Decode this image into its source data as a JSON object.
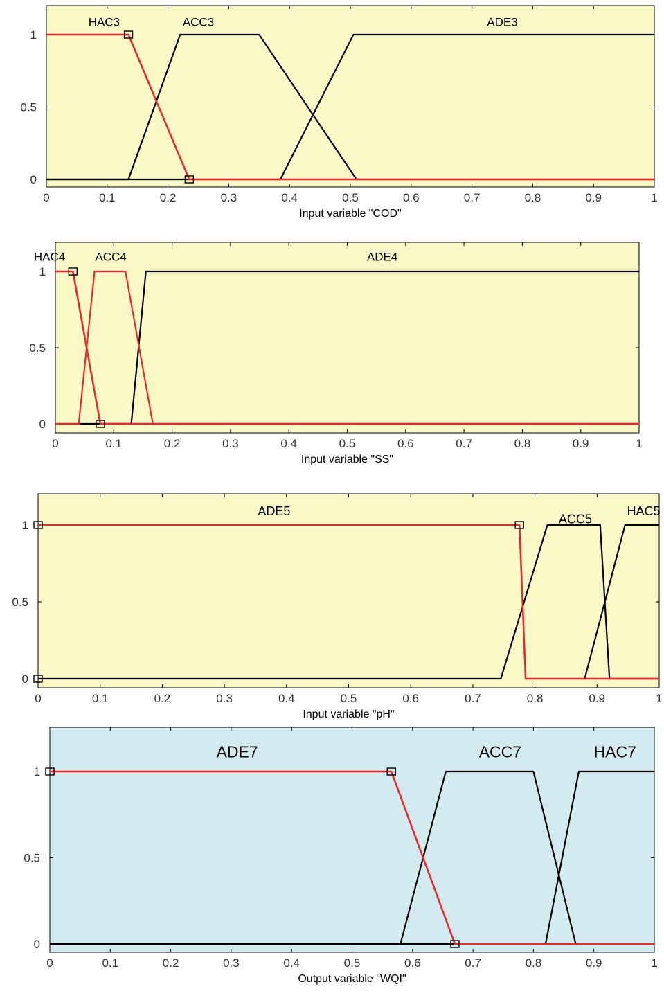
{
  "colors": {
    "input_background": "#fbf8c8",
    "output_background": "#d4eaf1",
    "selected_series": "#e8292b",
    "series": "#000000"
  },
  "chart_data": [
    {
      "type": "line",
      "xlabel": "Input variable \"COD\"",
      "xlim": [
        0,
        1
      ],
      "ylim": [
        0,
        1
      ],
      "x_ticks": [
        "0",
        "0.1",
        "0.2",
        "0.3",
        "0.4",
        "0.5",
        "0.6",
        "0.7",
        "0.8",
        "0.9",
        "1"
      ],
      "y_ticks": [
        "0",
        "0.5",
        "1"
      ],
      "grid": false,
      "background": "yellow",
      "series": [
        {
          "name": "HAC3",
          "color": "red",
          "selected": true,
          "points": [
            [
              0,
              1
            ],
            [
              0.135,
              1
            ],
            [
              0.235,
              0
            ],
            [
              1,
              0
            ]
          ],
          "markers": [
            [
              0.135,
              1
            ],
            [
              0.235,
              0
            ]
          ]
        },
        {
          "name": "ACC3",
          "color": "black",
          "points": [
            [
              0,
              0
            ],
            [
              0.135,
              0
            ],
            [
              0.22,
              1
            ],
            [
              0.35,
              1
            ],
            [
              0.51,
              0
            ],
            [
              1,
              0
            ]
          ]
        },
        {
          "name": "ADE3",
          "color": "black",
          "points": [
            [
              0,
              0
            ],
            [
              0.385,
              0
            ],
            [
              0.505,
              1
            ],
            [
              1,
              1
            ]
          ]
        }
      ]
    },
    {
      "type": "line",
      "xlabel": "Input variable \"SS\"",
      "xlim": [
        0,
        1
      ],
      "ylim": [
        0,
        1
      ],
      "x_ticks": [
        "0",
        "0.1",
        "0.2",
        "0.3",
        "0.4",
        "0.5",
        "0.6",
        "0.7",
        "0.8",
        "0.9",
        "1"
      ],
      "y_ticks": [
        "0",
        "0.5",
        "1"
      ],
      "grid": false,
      "background": "yellow",
      "series": [
        {
          "name": "HAC4",
          "color": "red",
          "selected": true,
          "points": [
            [
              0,
              1
            ],
            [
              0.03,
              1
            ],
            [
              0.077,
              0
            ],
            [
              1,
              0
            ]
          ],
          "markers": [
            [
              0.03,
              1
            ],
            [
              0.077,
              0
            ]
          ]
        },
        {
          "name": "ACC4",
          "color": "red",
          "points": [
            [
              0,
              0
            ],
            [
              0.04,
              0
            ],
            [
              0.067,
              1
            ],
            [
              0.12,
              1
            ],
            [
              0.167,
              0
            ],
            [
              1,
              0
            ]
          ]
        },
        {
          "name": "ADE4",
          "color": "black",
          "points": [
            [
              0,
              0
            ],
            [
              0.13,
              0
            ],
            [
              0.155,
              1
            ],
            [
              1,
              1
            ]
          ]
        }
      ]
    },
    {
      "type": "line",
      "xlabel": "Input variable \"pH\"",
      "xlim": [
        0,
        1
      ],
      "ylim": [
        0,
        1
      ],
      "x_ticks": [
        "0",
        "0.1",
        "0.2",
        "0.3",
        "0.4",
        "0.5",
        "0.6",
        "0.7",
        "0.8",
        "0.9",
        "1"
      ],
      "y_ticks": [
        "0",
        "0.5",
        "1"
      ],
      "grid": false,
      "background": "yellow",
      "series": [
        {
          "name": "ADE5",
          "color": "red",
          "selected": true,
          "points": [
            [
              0,
              1
            ],
            [
              0.775,
              1
            ],
            [
              0.785,
              0
            ],
            [
              1,
              0
            ]
          ],
          "markers": [
            [
              0,
              1
            ],
            [
              0,
              0
            ],
            [
              0.775,
              1
            ]
          ]
        },
        {
          "name": "ACC5",
          "color": "black",
          "points": [
            [
              0,
              0
            ],
            [
              0.745,
              0
            ],
            [
              0.82,
              1
            ],
            [
              0.905,
              1
            ],
            [
              0.92,
              0
            ],
            [
              1,
              0
            ]
          ]
        },
        {
          "name": "HAC5",
          "color": "black",
          "points": [
            [
              0.88,
              0
            ],
            [
              0.945,
              1
            ],
            [
              1,
              1
            ]
          ]
        }
      ]
    },
    {
      "type": "line",
      "xlabel": "Output variable \"WQI\"",
      "xlim": [
        0,
        1
      ],
      "ylim": [
        0,
        1
      ],
      "x_ticks": [
        "0",
        "0.1",
        "0.2",
        "0.3",
        "0.4",
        "0.5",
        "0.6",
        "0.7",
        "0.8",
        "0.9",
        "1"
      ],
      "y_ticks": [
        "0",
        "0.5",
        "1"
      ],
      "grid": false,
      "background": "blue",
      "series": [
        {
          "name": "ADE7",
          "color": "red",
          "selected": true,
          "points": [
            [
              0,
              1
            ],
            [
              0.565,
              1
            ],
            [
              0.67,
              0
            ],
            [
              1,
              0
            ]
          ],
          "markers": [
            [
              0,
              1
            ],
            [
              0.565,
              1
            ],
            [
              0.67,
              0
            ]
          ]
        },
        {
          "name": "ACC7",
          "color": "black",
          "points": [
            [
              0,
              0
            ],
            [
              0.58,
              0
            ],
            [
              0.655,
              1
            ],
            [
              0.8,
              1
            ],
            [
              0.87,
              0
            ],
            [
              1,
              0
            ]
          ]
        },
        {
          "name": "HAC7",
          "color": "black",
          "points": [
            [
              0,
              0
            ],
            [
              0.82,
              0
            ],
            [
              0.875,
              1
            ],
            [
              1,
              1
            ]
          ]
        }
      ]
    }
  ]
}
